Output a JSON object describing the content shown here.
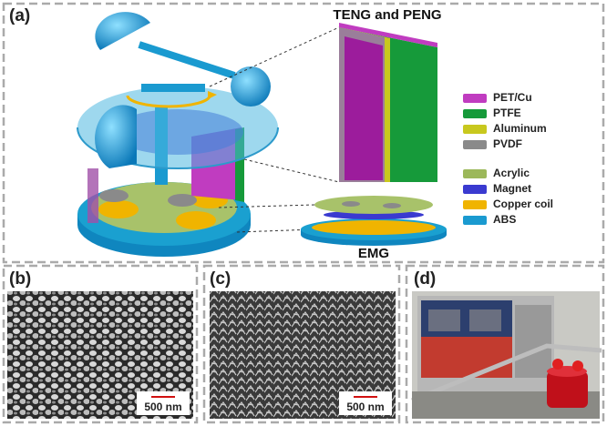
{
  "panels": [
    {
      "label": "(a)",
      "titles": [
        "TENG and PENG",
        "EMG"
      ],
      "legend": [
        {
          "label": "PET/Cu",
          "color": "#c03cc0"
        },
        {
          "label": "PTFE",
          "color": "#169a3a"
        },
        {
          "label": "Aluminum",
          "color": "#c8c81e"
        },
        {
          "label": "PVDF",
          "color": "#8a8a8a"
        },
        {
          "label": "Acrylic",
          "color": "#9cb85a"
        },
        {
          "label": "Magnet",
          "color": "#3a3ad0"
        },
        {
          "label": "Copper coil",
          "color": "#f0b400"
        },
        {
          "label": "ABS",
          "color": "#1a9ad0"
        }
      ]
    },
    {
      "label": "(b)",
      "scale_bar": "500 nm"
    },
    {
      "label": "(c)",
      "scale_bar": "500 nm"
    },
    {
      "label": "(d)"
    }
  ]
}
